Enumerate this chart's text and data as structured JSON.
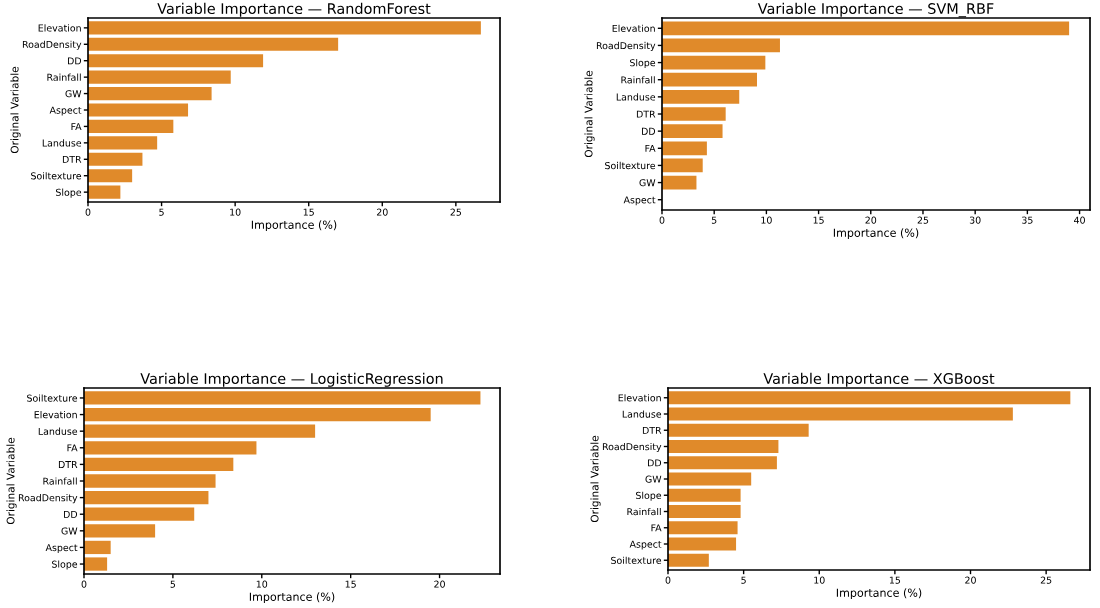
{
  "chart_data": [
    {
      "type": "bar",
      "orientation": "horizontal",
      "title": "Variable Importance — RandomForest",
      "xlabel": "Importance (%)",
      "ylabel": "Original Variable",
      "categories": [
        "Elevation",
        "RoadDensity",
        "DD",
        "Rainfall",
        "GW",
        "Aspect",
        "FA",
        "Landuse",
        "DTR",
        "Soiltexture",
        "Slope"
      ],
      "values": [
        26.7,
        17.0,
        11.9,
        9.7,
        8.4,
        6.8,
        5.8,
        4.7,
        3.7,
        3.0,
        2.2
      ],
      "color": "#e08a2a",
      "xlim": [
        0,
        28
      ],
      "xticks": [
        0,
        5,
        10,
        15,
        20,
        25
      ],
      "grid": false,
      "legend": false
    },
    {
      "type": "bar",
      "orientation": "horizontal",
      "title": "Variable Importance — SVM_RBF",
      "xlabel": "Importance (%)",
      "ylabel": "Original Variable",
      "categories": [
        "Elevation",
        "RoadDensity",
        "Slope",
        "Rainfall",
        "Landuse",
        "DTR",
        "DD",
        "FA",
        "Soiltexture",
        "GW",
        "Aspect"
      ],
      "values": [
        39.0,
        11.3,
        9.9,
        9.1,
        7.4,
        6.1,
        5.8,
        4.3,
        3.9,
        3.3,
        0
      ],
      "color": "#e08a2a",
      "xlim": [
        0,
        41
      ],
      "xticks": [
        0,
        5,
        10,
        15,
        20,
        25,
        30,
        35,
        40
      ],
      "grid": false,
      "legend": false
    },
    {
      "type": "bar",
      "orientation": "horizontal",
      "title": "Variable Importance — LogisticRegression",
      "xlabel": "Importance (%)",
      "ylabel": "Original Variable",
      "categories": [
        "Soiltexture",
        "Elevation",
        "Landuse",
        "FA",
        "DTR",
        "Rainfall",
        "RoadDensity",
        "DD",
        "GW",
        "Aspect",
        "Slope"
      ],
      "values": [
        22.3,
        19.5,
        13.0,
        9.7,
        8.4,
        7.4,
        7.0,
        6.2,
        4.0,
        1.5,
        1.3
      ],
      "color": "#e08a2a",
      "xlim": [
        0,
        23.4
      ],
      "xticks": [
        0,
        5,
        10,
        15,
        20
      ],
      "grid": false,
      "legend": false
    },
    {
      "type": "bar",
      "orientation": "horizontal",
      "title": "Variable Importance — XGBoost",
      "xlabel": "Importance (%)",
      "ylabel": "Original Variable",
      "categories": [
        "Elevation",
        "Landuse",
        "DTR",
        "RoadDensity",
        "DD",
        "GW",
        "Slope",
        "Rainfall",
        "FA",
        "Aspect",
        "Soiltexture"
      ],
      "values": [
        26.6,
        22.8,
        9.3,
        7.3,
        7.2,
        5.5,
        4.8,
        4.8,
        4.6,
        4.5,
        2.7
      ],
      "color": "#e08a2a",
      "xlim": [
        0,
        27.9
      ],
      "xticks": [
        0,
        5,
        10,
        15,
        20,
        25
      ],
      "grid": false,
      "legend": false
    }
  ]
}
